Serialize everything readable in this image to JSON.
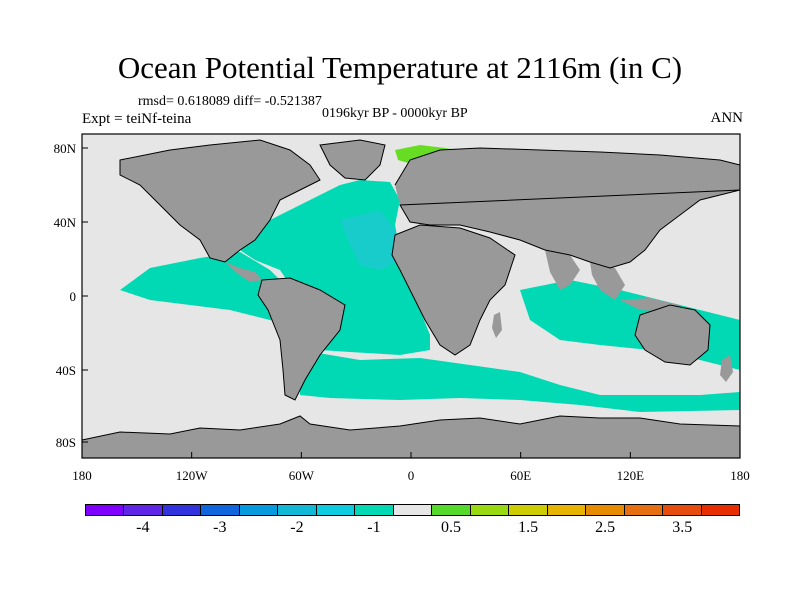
{
  "title": "Ocean Potential Temperature at 2116m (in C)",
  "stats": "rmsd= 0.618089  diff= -0.521387",
  "period": "0196kyr BP - 0000kyr BP",
  "expt": "Expt = teiNf-teina",
  "season": "ANN",
  "lat_ticks": [
    "80N",
    "40N",
    "0",
    "40S",
    "80S"
  ],
  "lon_ticks": [
    "180",
    "120W",
    "60W",
    "0",
    "60E",
    "120E",
    "180"
  ],
  "colors": {
    "land": "#999999",
    "ocean_near_zero": "#e6e6e6",
    "ocean_minus_one": "#00d9b3",
    "ocean_minus_one_half": "#19cccc",
    "positive_one": "#66dd22",
    "positive_three": "#e06d12",
    "negative_four": "#7a1fe0",
    "coastline": "#000000"
  },
  "colorbar": {
    "colors": [
      "#8000ff",
      "#5f26e6",
      "#3333dd",
      "#0f66dd",
      "#0599dd",
      "#10b8d6",
      "#0dcce0",
      "#00d9b3",
      "#e6e6e6",
      "#55d92b",
      "#99d910",
      "#cccc00",
      "#e6b300",
      "#e68a00",
      "#e66f12",
      "#e64c0d",
      "#e62e00"
    ],
    "labels": [
      "-4",
      "-3",
      "-2",
      "-1",
      "0.5",
      "1.5",
      "2.5",
      "3.5"
    ]
  }
}
